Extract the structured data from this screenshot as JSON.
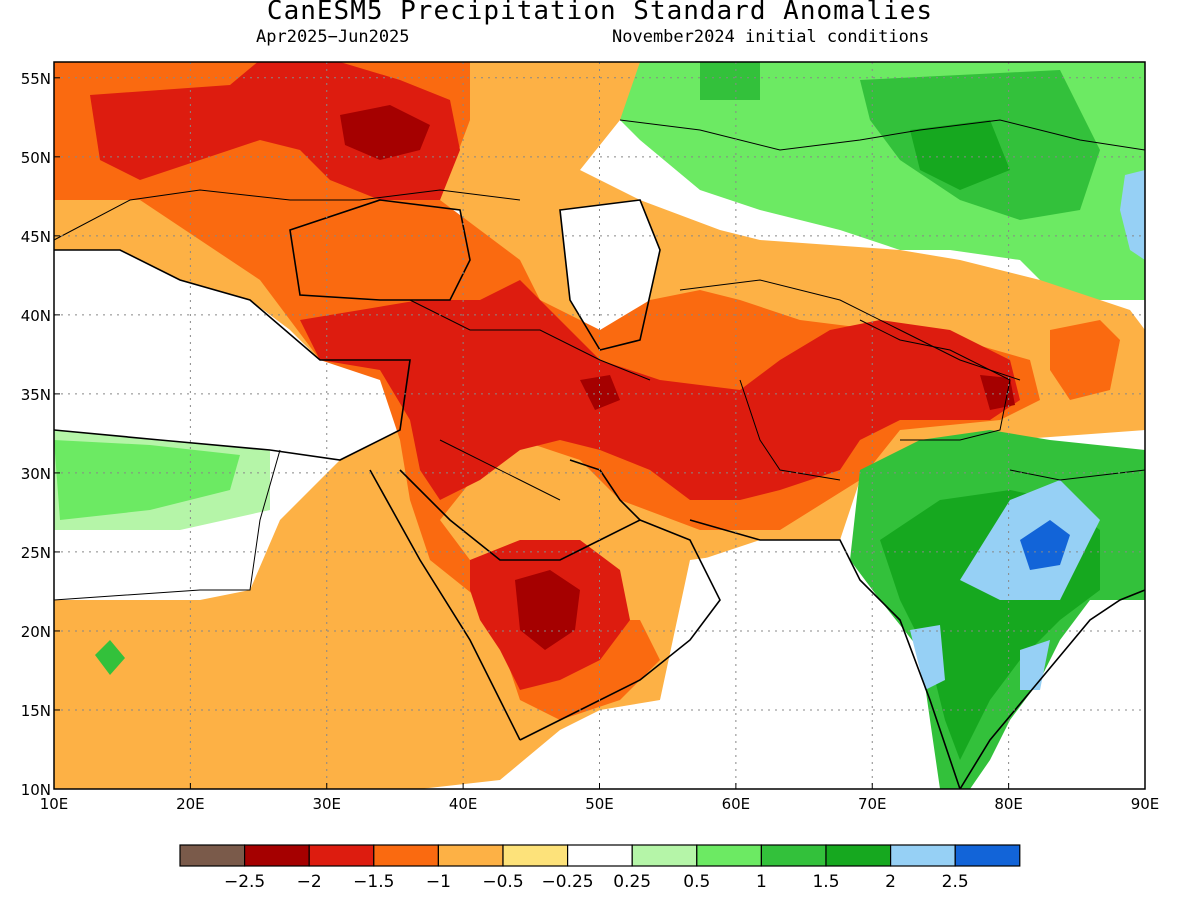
{
  "title": "CanESM5 Precipitation Standard Anomalies",
  "period": "Apr2025−Jun2025",
  "initial_conditions": "November2024 initial conditions",
  "map": {
    "lon_range": [
      10,
      90
    ],
    "lat_range": [
      10,
      56
    ],
    "x_ticks": [
      "10E",
      "20E",
      "30E",
      "40E",
      "50E",
      "60E",
      "70E",
      "80E",
      "90E"
    ],
    "y_ticks": [
      "10N",
      "15N",
      "20N",
      "25N",
      "30N",
      "35N",
      "40N",
      "45N",
      "50N",
      "55N"
    ],
    "grid": "dotted"
  },
  "colorbar": {
    "labels": [
      "−2.5",
      "−2",
      "−1.5",
      "−1",
      "−0.5",
      "−0.25",
      "0.25",
      "0.5",
      "1",
      "1.5",
      "2",
      "2.5"
    ],
    "colors": [
      "#7a5a4a",
      "#a50000",
      "#dd1c0f",
      "#fa6a10",
      "#fdb145",
      "#fde27a",
      "#ffffff",
      "#b5f5a8",
      "#6cea63",
      "#33c13b",
      "#16a81f",
      "#96d0f5",
      "#1264d8"
    ]
  },
  "regions": [
    {
      "name": "india-wet",
      "color": "#16a81f"
    },
    {
      "name": "middle-east-dry",
      "color": "#fa6a10"
    }
  ]
}
